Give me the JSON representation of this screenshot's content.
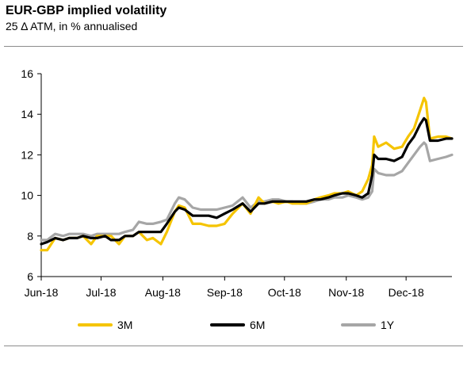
{
  "header": {
    "title": "EUR-GBP implied volatility",
    "subtitle": "25 ∆ ATM, in % annualised"
  },
  "chart_data": {
    "type": "line",
    "title": "EUR-GBP implied volatility",
    "subtitle": "25 ∆ ATM, in % annualised",
    "xlabel": "",
    "ylabel": "",
    "x_tick_labels": [
      "Jun-18",
      "Jul-18",
      "Aug-18",
      "Sep-18",
      "Oct-18",
      "Nov-18",
      "Dec-18"
    ],
    "x_tick_values": [
      "2018-06-01",
      "2018-07-01",
      "2018-08-01",
      "2018-09-01",
      "2018-10-01",
      "2018-11-01",
      "2018-12-01"
    ],
    "xlim": [
      "2018-06-01",
      "2018-12-24"
    ],
    "y_ticks": [
      6,
      8,
      10,
      12,
      14,
      16
    ],
    "ylim": [
      6,
      16
    ],
    "grid": false,
    "legend_position": "bottom",
    "series": [
      {
        "name": "3M",
        "color": "#f5c400",
        "x": [
          "2018-06-01",
          "2018-06-04",
          "2018-06-08",
          "2018-06-12",
          "2018-06-15",
          "2018-06-19",
          "2018-06-22",
          "2018-06-26",
          "2018-06-29",
          "2018-07-03",
          "2018-07-06",
          "2018-07-10",
          "2018-07-13",
          "2018-07-17",
          "2018-07-20",
          "2018-07-24",
          "2018-07-27",
          "2018-07-31",
          "2018-08-03",
          "2018-08-07",
          "2018-08-09",
          "2018-08-12",
          "2018-08-16",
          "2018-08-20",
          "2018-08-24",
          "2018-08-28",
          "2018-09-01",
          "2018-09-05",
          "2018-09-10",
          "2018-09-14",
          "2018-09-18",
          "2018-09-21",
          "2018-09-25",
          "2018-09-28",
          "2018-10-02",
          "2018-10-05",
          "2018-10-09",
          "2018-10-12",
          "2018-10-16",
          "2018-10-19",
          "2018-10-23",
          "2018-10-26",
          "2018-10-30",
          "2018-11-02",
          "2018-11-06",
          "2018-11-09",
          "2018-11-12",
          "2018-11-14",
          "2018-11-15",
          "2018-11-17",
          "2018-11-21",
          "2018-11-25",
          "2018-11-29",
          "2018-12-02",
          "2018-12-05",
          "2018-12-08",
          "2018-12-10",
          "2018-12-11",
          "2018-12-13",
          "2018-12-17",
          "2018-12-21",
          "2018-12-24"
        ],
        "values": [
          7.3,
          7.3,
          7.9,
          7.8,
          7.9,
          7.9,
          8.0,
          7.6,
          8.0,
          8.0,
          8.0,
          7.6,
          8.0,
          8.0,
          8.2,
          7.8,
          7.9,
          7.6,
          8.2,
          9.2,
          9.5,
          9.4,
          8.6,
          8.6,
          8.5,
          8.5,
          8.6,
          9.1,
          9.6,
          9.1,
          9.9,
          9.6,
          9.7,
          9.6,
          9.7,
          9.6,
          9.6,
          9.6,
          9.8,
          9.9,
          10.0,
          10.1,
          10.1,
          10.2,
          10.0,
          10.2,
          10.8,
          11.5,
          12.9,
          12.4,
          12.6,
          12.3,
          12.4,
          12.9,
          13.3,
          14.2,
          14.8,
          14.6,
          12.8,
          12.9,
          12.9,
          12.8
        ]
      },
      {
        "name": "6M",
        "color": "#000000",
        "x": [
          "2018-06-01",
          "2018-06-04",
          "2018-06-08",
          "2018-06-12",
          "2018-06-15",
          "2018-06-19",
          "2018-06-22",
          "2018-06-26",
          "2018-06-29",
          "2018-07-03",
          "2018-07-06",
          "2018-07-10",
          "2018-07-13",
          "2018-07-17",
          "2018-07-20",
          "2018-07-24",
          "2018-07-27",
          "2018-07-31",
          "2018-08-03",
          "2018-08-07",
          "2018-08-09",
          "2018-08-12",
          "2018-08-16",
          "2018-08-20",
          "2018-08-24",
          "2018-08-28",
          "2018-09-01",
          "2018-09-05",
          "2018-09-10",
          "2018-09-14",
          "2018-09-18",
          "2018-09-21",
          "2018-09-25",
          "2018-09-28",
          "2018-10-02",
          "2018-10-05",
          "2018-10-09",
          "2018-10-12",
          "2018-10-16",
          "2018-10-19",
          "2018-10-23",
          "2018-10-26",
          "2018-10-30",
          "2018-11-02",
          "2018-11-06",
          "2018-11-09",
          "2018-11-12",
          "2018-11-14",
          "2018-11-15",
          "2018-11-17",
          "2018-11-21",
          "2018-11-25",
          "2018-11-29",
          "2018-12-02",
          "2018-12-05",
          "2018-12-08",
          "2018-12-10",
          "2018-12-11",
          "2018-12-13",
          "2018-12-17",
          "2018-12-21",
          "2018-12-24"
        ],
        "values": [
          7.6,
          7.7,
          7.9,
          7.8,
          7.9,
          7.9,
          8.0,
          7.9,
          7.9,
          8.0,
          7.8,
          7.8,
          8.0,
          8.0,
          8.2,
          8.2,
          8.2,
          8.2,
          8.6,
          9.2,
          9.4,
          9.3,
          9.0,
          9.0,
          9.0,
          8.9,
          9.1,
          9.3,
          9.6,
          9.2,
          9.6,
          9.6,
          9.7,
          9.7,
          9.7,
          9.7,
          9.7,
          9.7,
          9.8,
          9.8,
          9.9,
          10.0,
          10.1,
          10.1,
          10.0,
          9.9,
          10.1,
          11.0,
          12.0,
          11.8,
          11.8,
          11.7,
          11.9,
          12.5,
          12.9,
          13.5,
          13.8,
          13.7,
          12.7,
          12.7,
          12.8,
          12.8
        ]
      },
      {
        "name": "1Y",
        "color": "#a6a6a6",
        "x": [
          "2018-06-01",
          "2018-06-04",
          "2018-06-08",
          "2018-06-12",
          "2018-06-15",
          "2018-06-19",
          "2018-06-22",
          "2018-06-26",
          "2018-06-29",
          "2018-07-03",
          "2018-07-06",
          "2018-07-10",
          "2018-07-13",
          "2018-07-17",
          "2018-07-20",
          "2018-07-24",
          "2018-07-27",
          "2018-07-31",
          "2018-08-03",
          "2018-08-07",
          "2018-08-09",
          "2018-08-12",
          "2018-08-16",
          "2018-08-20",
          "2018-08-24",
          "2018-08-28",
          "2018-09-01",
          "2018-09-05",
          "2018-09-10",
          "2018-09-14",
          "2018-09-18",
          "2018-09-21",
          "2018-09-25",
          "2018-09-28",
          "2018-10-02",
          "2018-10-05",
          "2018-10-09",
          "2018-10-12",
          "2018-10-16",
          "2018-10-19",
          "2018-10-23",
          "2018-10-26",
          "2018-10-30",
          "2018-11-02",
          "2018-11-06",
          "2018-11-09",
          "2018-11-12",
          "2018-11-14",
          "2018-11-15",
          "2018-11-17",
          "2018-11-21",
          "2018-11-25",
          "2018-11-29",
          "2018-12-02",
          "2018-12-05",
          "2018-12-08",
          "2018-12-10",
          "2018-12-11",
          "2018-12-13",
          "2018-12-17",
          "2018-12-21",
          "2018-12-24"
        ],
        "values": [
          7.8,
          7.8,
          8.1,
          8.0,
          8.1,
          8.1,
          8.1,
          8.0,
          8.1,
          8.1,
          8.1,
          8.1,
          8.2,
          8.3,
          8.7,
          8.6,
          8.6,
          8.7,
          8.8,
          9.6,
          9.9,
          9.8,
          9.4,
          9.3,
          9.3,
          9.3,
          9.4,
          9.5,
          9.9,
          9.4,
          9.7,
          9.7,
          9.8,
          9.8,
          9.7,
          9.7,
          9.6,
          9.6,
          9.7,
          9.8,
          9.8,
          9.9,
          9.9,
          10.0,
          9.9,
          9.8,
          9.9,
          10.2,
          11.3,
          11.1,
          11.0,
          11.0,
          11.2,
          11.6,
          12.0,
          12.4,
          12.6,
          12.5,
          11.7,
          11.8,
          11.9,
          12.0
        ]
      }
    ]
  }
}
